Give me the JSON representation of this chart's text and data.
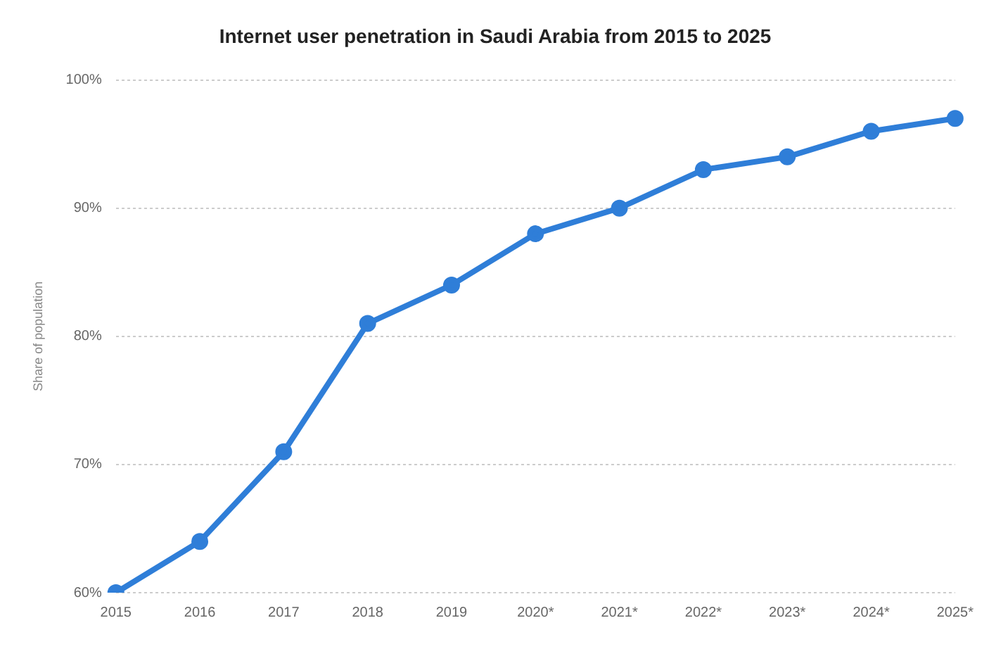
{
  "chart_data": {
    "type": "line",
    "title": "Internet user penetration in Saudi Arabia from 2015 to 2025",
    "ylabel": "Share of population",
    "categories": [
      "2015",
      "2016",
      "2017",
      "2018",
      "2019",
      "2020*",
      "2021*",
      "2022*",
      "2023*",
      "2024*",
      "2025*"
    ],
    "series": [
      {
        "color": "#2f7ed8",
        "values": [
          60,
          64,
          71,
          81,
          84,
          88,
          90,
          93,
          94,
          96,
          97
        ]
      }
    ],
    "ylim": [
      60,
      100
    ],
    "yticks": [
      {
        "value": 60,
        "label": "60%"
      },
      {
        "value": 70,
        "label": "70%"
      },
      {
        "value": 80,
        "label": "80%"
      },
      {
        "value": 90,
        "label": "90%"
      },
      {
        "value": 100,
        "label": "100%"
      }
    ],
    "grid": "y",
    "legend": false,
    "marker": "circle",
    "line_style": "solid"
  }
}
